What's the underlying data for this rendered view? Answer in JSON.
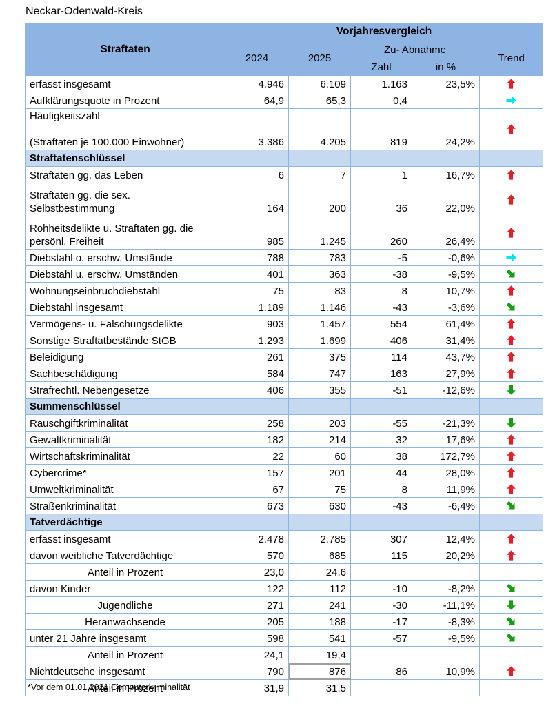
{
  "page": {
    "title": "Neckar-Odenwald-Kreis",
    "footnote": "*Vor dem 01.01.2021 Computerkriminalität"
  },
  "colors": {
    "header_bg": "#8db4e2",
    "section_bg": "#c5d9f1",
    "grid_border": "#8eb4e3",
    "trend_up_red": "#ec1c24",
    "trend_right_cyan": "#00e5ee",
    "trend_down_green": "#12a012",
    "highlight_cell_border": "#a0a0a0"
  },
  "icons": {
    "up": "trend-up-arrow-icon",
    "right": "trend-right-arrow-icon",
    "down": "trend-down-arrow-icon",
    "down-right": "trend-down-right-arrow-icon"
  },
  "table": {
    "header": {
      "straftaten": "Straftaten",
      "vorjahresvergleich": "Vorjahresvergleich",
      "year_prev": "2024",
      "year_curr": "2025",
      "zu_abnahme": "Zu- Abnahme",
      "zahl": "Zahl",
      "in_prozent": "in %",
      "trend": "Trend"
    },
    "rows": [
      {
        "type": "data",
        "label": "erfasst insgesamt",
        "v2024": "4.946",
        "v2025": "6.109",
        "zahl": "1.163",
        "pct": "23,5%",
        "trend": "up"
      },
      {
        "type": "data",
        "label": "Aufklärungsquote in Prozent",
        "v2024": "64,9",
        "v2025": "65,3",
        "zahl": "0,4",
        "pct": "",
        "trend": "right"
      },
      {
        "type": "data",
        "label": "Häufigkeitszahl\n\n(Straftaten je 100.000 Einwohner)",
        "rowclass": "tall-gap",
        "v2024": "3.386",
        "v2025": "4.205",
        "zahl": "819",
        "pct": "24,2%",
        "trend": "up"
      },
      {
        "type": "section",
        "label": "Straftatenschlüssel"
      },
      {
        "type": "data",
        "label": "Straftaten gg. das Leben",
        "v2024": "6",
        "v2025": "7",
        "zahl": "1",
        "pct": "16,7%",
        "trend": "up"
      },
      {
        "type": "data",
        "label": "Straftaten gg. die sex.\nSelbstbestimmung",
        "rowclass": "two-line",
        "v2024": "164",
        "v2025": "200",
        "zahl": "36",
        "pct": "22,0%",
        "trend": "up"
      },
      {
        "type": "data",
        "label": "Rohheitsdelikte u. Straftaten gg. die\npersönl. Freiheit",
        "rowclass": "two-line",
        "v2024": "985",
        "v2025": "1.245",
        "zahl": "260",
        "pct": "26,4%",
        "trend": "up"
      },
      {
        "type": "data",
        "label": "Diebstahl o. erschw. Umstände",
        "v2024": "788",
        "v2025": "783",
        "zahl": "-5",
        "pct": "-0,6%",
        "trend": "right"
      },
      {
        "type": "data",
        "label": "Diebstahl u. erschw. Umständen",
        "v2024": "401",
        "v2025": "363",
        "zahl": "-38",
        "pct": "-9,5%",
        "trend": "down-right"
      },
      {
        "type": "data",
        "label": "Wohnungseinbruchdiebstahl",
        "v2024": "75",
        "v2025": "83",
        "zahl": "8",
        "pct": "10,7%",
        "trend": "up"
      },
      {
        "type": "data",
        "label": "Diebstahl insgesamt",
        "v2024": "1.189",
        "v2025": "1.146",
        "zahl": "-43",
        "pct": "-3,6%",
        "trend": "down-right"
      },
      {
        "type": "data",
        "label": "Vermögens- u. Fälschungsdelikte",
        "v2024": "903",
        "v2025": "1.457",
        "zahl": "554",
        "pct": "61,4%",
        "trend": "up"
      },
      {
        "type": "data",
        "label": "Sonstige Straftatbestände StGB",
        "v2024": "1.293",
        "v2025": "1.699",
        "zahl": "406",
        "pct": "31,4%",
        "trend": "up"
      },
      {
        "type": "data",
        "label": "Beleidigung",
        "v2024": "261",
        "v2025": "375",
        "zahl": "114",
        "pct": "43,7%",
        "trend": "up"
      },
      {
        "type": "data",
        "label": "Sachbeschädigung",
        "v2024": "584",
        "v2025": "747",
        "zahl": "163",
        "pct": "27,9%",
        "trend": "up"
      },
      {
        "type": "data",
        "label": "Strafrechtl. Nebengesetze",
        "v2024": "406",
        "v2025": "355",
        "zahl": "-51",
        "pct": "-12,6%",
        "trend": "down"
      },
      {
        "type": "section",
        "label": "Summenschlüssel"
      },
      {
        "type": "data",
        "label": "Rauschgiftkriminalität",
        "v2024": "258",
        "v2025": "203",
        "zahl": "-55",
        "pct": "-21,3%",
        "trend": "down"
      },
      {
        "type": "data",
        "label": "Gewaltkriminalität",
        "v2024": "182",
        "v2025": "214",
        "zahl": "32",
        "pct": "17,6%",
        "trend": "up"
      },
      {
        "type": "data",
        "label": "Wirtschaftskriminalität",
        "v2024": "22",
        "v2025": "60",
        "zahl": "38",
        "pct": "172,7%",
        "trend": "up"
      },
      {
        "type": "data",
        "label": "Cybercrime*",
        "v2024": "157",
        "v2025": "201",
        "zahl": "44",
        "pct": "28,0%",
        "trend": "up"
      },
      {
        "type": "data",
        "label": "Umweltkriminalität",
        "v2024": "67",
        "v2025": "75",
        "zahl": "8",
        "pct": "11,9%",
        "trend": "up"
      },
      {
        "type": "data",
        "label": "Straßenkriminalität",
        "v2024": "673",
        "v2025": "630",
        "zahl": "-43",
        "pct": "-6,4%",
        "trend": "down-right"
      },
      {
        "type": "section",
        "label": "Tatverdächtige"
      },
      {
        "type": "data",
        "label": "erfasst insgesamt",
        "v2024": "2.478",
        "v2025": "2.785",
        "zahl": "307",
        "pct": "12,4%",
        "trend": "up"
      },
      {
        "type": "data",
        "label": "davon weibliche Tatverdächtige",
        "v2024": "570",
        "v2025": "685",
        "zahl": "115",
        "pct": "20,2%",
        "trend": "up"
      },
      {
        "type": "data",
        "label": "Anteil in Prozent",
        "align": "center",
        "v2024": "23,0",
        "v2025": "24,6",
        "zahl": "",
        "pct": "",
        "trend": ""
      },
      {
        "type": "data",
        "label": "davon Kinder",
        "v2024": "122",
        "v2025": "112",
        "zahl": "-10",
        "pct": "-8,2%",
        "trend": "down-right"
      },
      {
        "type": "data",
        "label": "Jugendliche",
        "align": "center",
        "v2024": "271",
        "v2025": "241",
        "zahl": "-30",
        "pct": "-11,1%",
        "trend": "down"
      },
      {
        "type": "data",
        "label": "Heranwachsende",
        "align": "center",
        "v2024": "205",
        "v2025": "188",
        "zahl": "-17",
        "pct": "-8,3%",
        "trend": "down-right"
      },
      {
        "type": "data",
        "label": "unter 21 Jahre insgesamt",
        "v2024": "598",
        "v2025": "541",
        "zahl": "-57",
        "pct": "-9,5%",
        "trend": "down-right"
      },
      {
        "type": "data",
        "label": "Anteil in Prozent",
        "align": "center",
        "v2024": "24,1",
        "v2025": "19,4",
        "zahl": "",
        "pct": "",
        "trend": ""
      },
      {
        "type": "data",
        "label": "Nichtdeutsche insgesamt",
        "v2024": "790",
        "v2025": "876",
        "zahl": "86",
        "pct": "10,9%",
        "trend": "up",
        "highlight": "v2025"
      },
      {
        "type": "data",
        "label": "Anteil in Prozent",
        "align": "center",
        "v2024": "31,9",
        "v2025": "31,5",
        "zahl": "",
        "pct": "",
        "trend": ""
      }
    ]
  }
}
